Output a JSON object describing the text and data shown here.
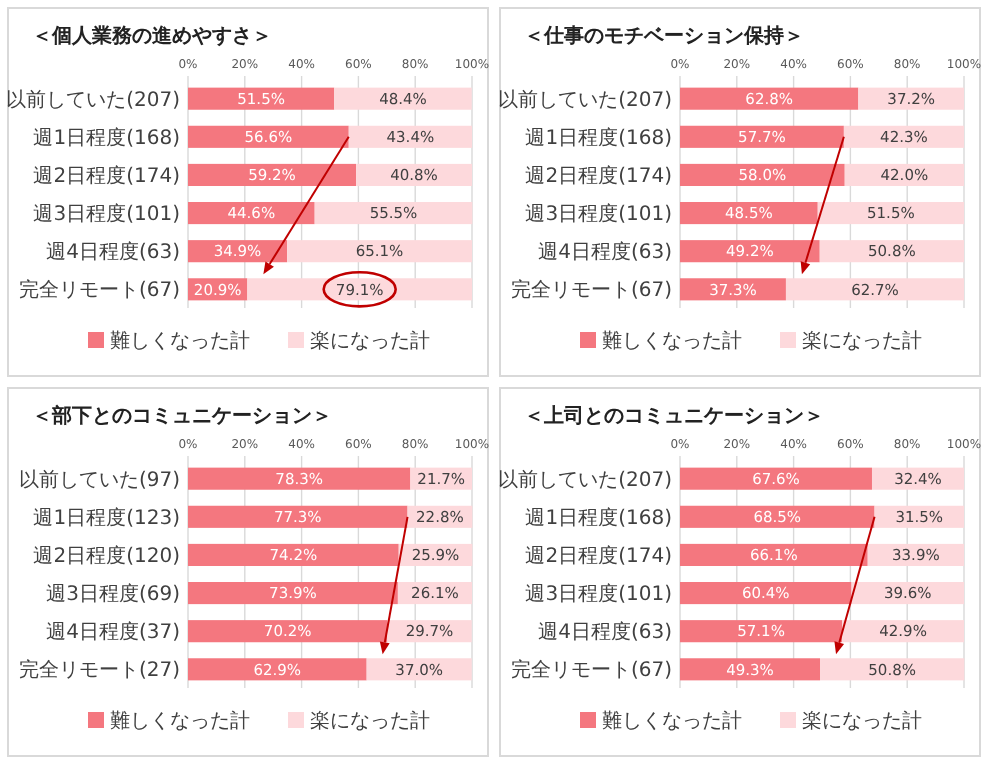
{
  "chart_data": [
    {
      "type": "bar",
      "orientation": "horizontal",
      "stacked": true,
      "title": "＜個人業務の進めやすさ＞",
      "categories": [
        "以前していた(207)",
        "週1日程度(168)",
        "週2日程度(174)",
        "週3日程度(101)",
        "週4日程度(63)",
        "完全リモート(67)"
      ],
      "xlim": [
        0,
        100
      ],
      "xticks": [
        {
          "value": 0,
          "label": "0%"
        },
        {
          "value": 20,
          "label": "20%"
        },
        {
          "value": 40,
          "label": "40%"
        },
        {
          "value": 60,
          "label": "60%"
        },
        {
          "value": 80,
          "label": "80%"
        },
        {
          "value": 100,
          "label": "100%"
        }
      ],
      "grid": "x",
      "legend": "bottom",
      "series": [
        {
          "name": "難しくなった計",
          "color": "#f4777f",
          "values": [
            51.5,
            56.6,
            59.2,
            44.6,
            34.9,
            20.9
          ],
          "value_labels": [
            "51.5%",
            "56.6%",
            "59.2%",
            "44.6%",
            "34.9%",
            "20.9%"
          ]
        },
        {
          "name": "楽になった計",
          "color": "#fdd9dc",
          "values": [
            48.4,
            43.4,
            40.8,
            55.5,
            65.1,
            79.1
          ],
          "value_labels": [
            "48.4%",
            "43.4%",
            "40.8%",
            "55.5%",
            "65.1%",
            "79.1%"
          ]
        }
      ]
    },
    {
      "type": "bar",
      "orientation": "horizontal",
      "stacked": true,
      "title": "＜仕事のモチベーション保持＞",
      "categories": [
        "以前していた(207)",
        "週1日程度(168)",
        "週2日程度(174)",
        "週3日程度(101)",
        "週4日程度(63)",
        "完全リモート(67)"
      ],
      "xlim": [
        0,
        100
      ],
      "xticks": [
        {
          "value": 0,
          "label": "0%"
        },
        {
          "value": 20,
          "label": "20%"
        },
        {
          "value": 40,
          "label": "40%"
        },
        {
          "value": 60,
          "label": "60%"
        },
        {
          "value": 80,
          "label": "80%"
        },
        {
          "value": 100,
          "label": "100%"
        }
      ],
      "grid": "x",
      "legend": "bottom",
      "series": [
        {
          "name": "難しくなった計",
          "color": "#f4777f",
          "values": [
            62.8,
            57.7,
            58.0,
            48.5,
            49.2,
            37.3
          ],
          "value_labels": [
            "62.8%",
            "57.7%",
            "58.0%",
            "48.5%",
            "49.2%",
            "37.3%"
          ]
        },
        {
          "name": "楽になった計",
          "color": "#fdd9dc",
          "values": [
            37.2,
            42.3,
            42.0,
            51.5,
            50.8,
            62.7
          ],
          "value_labels": [
            "37.2%",
            "42.3%",
            "42.0%",
            "51.5%",
            "50.8%",
            "62.7%"
          ]
        }
      ]
    },
    {
      "type": "bar",
      "orientation": "horizontal",
      "stacked": true,
      "title": "＜部下とのコミュニケーション＞",
      "categories": [
        "以前していた(97)",
        "週1日程度(123)",
        "週2日程度(120)",
        "週3日程度(69)",
        "週4日程度(37)",
        "完全リモート(27)"
      ],
      "xlim": [
        0,
        100
      ],
      "xticks": [
        {
          "value": 0,
          "label": "0%"
        },
        {
          "value": 20,
          "label": "20%"
        },
        {
          "value": 40,
          "label": "40%"
        },
        {
          "value": 60,
          "label": "60%"
        },
        {
          "value": 80,
          "label": "80%"
        },
        {
          "value": 100,
          "label": "100%"
        }
      ],
      "grid": "x",
      "legend": "bottom",
      "series": [
        {
          "name": "難しくなった計",
          "color": "#f4777f",
          "values": [
            78.3,
            77.3,
            74.2,
            73.9,
            70.2,
            62.9
          ],
          "value_labels": [
            "78.3%",
            "77.3%",
            "74.2%",
            "73.9%",
            "70.2%",
            "62.9%"
          ]
        },
        {
          "name": "楽になった計",
          "color": "#fdd9dc",
          "values": [
            21.7,
            22.8,
            25.9,
            26.1,
            29.7,
            37.0
          ],
          "value_labels": [
            "21.7%",
            "22.8%",
            "25.9%",
            "26.1%",
            "29.7%",
            "37.0%"
          ]
        }
      ]
    },
    {
      "type": "bar",
      "orientation": "horizontal",
      "stacked": true,
      "title": "＜上司とのコミュニケーション＞",
      "categories": [
        "以前していた(207)",
        "週1日程度(168)",
        "週2日程度(174)",
        "週3日程度(101)",
        "週4日程度(63)",
        "完全リモート(67)"
      ],
      "xlim": [
        0,
        100
      ],
      "xticks": [
        {
          "value": 0,
          "label": "0%"
        },
        {
          "value": 20,
          "label": "20%"
        },
        {
          "value": 40,
          "label": "40%"
        },
        {
          "value": 60,
          "label": "60%"
        },
        {
          "value": 80,
          "label": "80%"
        },
        {
          "value": 100,
          "label": "100%"
        }
      ],
      "grid": "x",
      "legend": "bottom",
      "series": [
        {
          "name": "難しくなった計",
          "color": "#f4777f",
          "values": [
            67.6,
            68.5,
            66.1,
            60.4,
            57.1,
            49.3
          ],
          "value_labels": [
            "67.6%",
            "68.5%",
            "66.1%",
            "60.4%",
            "57.1%",
            "49.3%"
          ]
        },
        {
          "name": "楽になった計",
          "color": "#fdd9dc",
          "values": [
            32.4,
            31.5,
            33.9,
            39.6,
            42.9,
            50.8
          ],
          "value_labels": [
            "32.4%",
            "31.5%",
            "33.9%",
            "39.6%",
            "42.9%",
            "50.8%"
          ]
        }
      ]
    }
  ]
}
